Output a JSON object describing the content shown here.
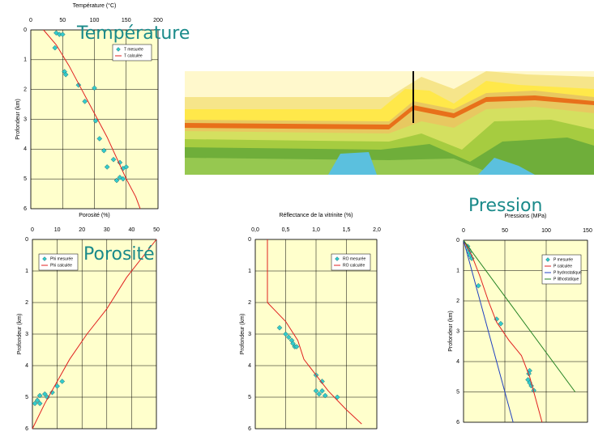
{
  "chart_data": [
    {
      "type": "line",
      "title": "Température (°C)",
      "annotation": "Température",
      "y_label": "Profondeur (km)",
      "xlim": [
        0,
        200
      ],
      "xticks": [
        0,
        50,
        100,
        150,
        200
      ],
      "ylim": [
        0,
        6
      ],
      "yticks": [
        0,
        1,
        2,
        3,
        4,
        5,
        6
      ],
      "y_inverted": true,
      "grid": true,
      "legend": "upper right",
      "series": [
        {
          "name": "T mesurée",
          "color": "#33cccc",
          "style": "markers",
          "x": [
            40,
            45,
            50,
            38,
            53,
            55,
            75,
            100,
            85,
            102,
            108,
            115,
            130,
            140,
            120,
            145,
            150,
            140,
            145,
            135
          ],
          "values": [
            0.1,
            0.15,
            0.15,
            0.6,
            1.4,
            1.5,
            1.85,
            1.95,
            2.4,
            3.05,
            3.65,
            4.05,
            4.35,
            4.45,
            4.6,
            4.65,
            4.6,
            4.95,
            5.0,
            5.05
          ]
        },
        {
          "name": "T calculée",
          "color": "#e02020",
          "style": "line",
          "x": [
            20,
            40,
            60,
            80,
            100,
            120,
            135,
            150,
            165,
            172
          ],
          "values": [
            0,
            0.5,
            1.2,
            2,
            2.8,
            3.6,
            4.3,
            5,
            5.6,
            6
          ]
        }
      ]
    },
    {
      "type": "line",
      "title": "Porosité (%)",
      "annotation": "Porosité",
      "y_label": "Profondeur (km)",
      "xlim": [
        0,
        50
      ],
      "xticks": [
        0,
        10,
        20,
        30,
        40,
        50
      ],
      "ylim": [
        0,
        6
      ],
      "yticks": [
        0,
        1,
        2,
        3,
        4,
        5,
        6
      ],
      "y_inverted": true,
      "grid": true,
      "legend": "upper left",
      "series": [
        {
          "name": "Phi mesurée",
          "color": "#33cccc",
          "style": "markers",
          "x": [
            12,
            10,
            8,
            5,
            3,
            6,
            2,
            3,
            1
          ],
          "values": [
            4.5,
            4.65,
            4.85,
            4.9,
            4.95,
            5,
            5.1,
            5.2,
            5.2
          ]
        },
        {
          "name": "Phi calculée",
          "color": "#e02020",
          "style": "line",
          "x": [
            50,
            45,
            38,
            30,
            22,
            15,
            10,
            5,
            0
          ],
          "values": [
            0,
            0.5,
            1.2,
            2.2,
            3,
            3.8,
            4.5,
            5.2,
            6
          ]
        }
      ]
    },
    {
      "type": "line",
      "title": "Réflectance de la vitrinite (%)",
      "y_label": "Profondeur (km)",
      "xlim": [
        0,
        2
      ],
      "xticks": [
        {
          "value": 0,
          "label": "0,0"
        },
        {
          "value": 0.5,
          "label": "0,5"
        },
        {
          "value": 1,
          "label": "1,0"
        },
        {
          "value": 1.5,
          "label": "1,5"
        },
        {
          "value": 2,
          "label": "2,0"
        }
      ],
      "ylim": [
        0,
        6
      ],
      "yticks": [
        0,
        1,
        2,
        3,
        4,
        5,
        6
      ],
      "y_inverted": true,
      "grid": true,
      "legend": "upper right",
      "series": [
        {
          "name": "RO mesurée",
          "color": "#33cccc",
          "style": "markers",
          "x": [
            0.4,
            0.5,
            0.55,
            0.6,
            0.62,
            0.65,
            0.68,
            1.0,
            1.1,
            1.0,
            1.05,
            1.1,
            1.15,
            1.35
          ],
          "values": [
            2.8,
            3.0,
            3.1,
            3.2,
            3.3,
            3.4,
            3.4,
            4.3,
            4.5,
            4.8,
            4.9,
            4.8,
            4.95,
            5.0
          ]
        },
        {
          "name": "RO calculée",
          "color": "#e02020",
          "style": "line",
          "x": [
            0.2,
            0.2,
            0.3,
            0.5,
            0.7,
            0.8,
            1.0,
            1.2,
            1.5,
            1.75
          ],
          "values": [
            0,
            2,
            2.2,
            2.6,
            3.2,
            3.8,
            4.3,
            4.8,
            5.4,
            5.85
          ]
        }
      ]
    },
    {
      "type": "line",
      "title": "Pressions (MPa)",
      "annotation": "Pression",
      "y_label": "Profondeur (km)",
      "xlim": [
        0,
        150
      ],
      "xticks": [
        0,
        50,
        100,
        150
      ],
      "ylim": [
        0,
        6
      ],
      "yticks": [
        0,
        1,
        2,
        3,
        4,
        5,
        6
      ],
      "y_inverted": true,
      "grid": true,
      "legend": "upper right",
      "series": [
        {
          "name": "P mesurée",
          "color": "#33cccc",
          "style": "markers",
          "x": [
            5,
            6,
            7,
            8,
            10,
            18,
            40,
            45,
            80,
            79,
            78,
            80,
            82,
            85
          ],
          "values": [
            0.2,
            0.3,
            0.4,
            0.5,
            0.6,
            1.5,
            2.6,
            2.75,
            4.3,
            4.4,
            4.6,
            4.7,
            4.8,
            4.95
          ]
        },
        {
          "name": "P calculée",
          "color": "#e02020",
          "style": "line",
          "x": [
            0,
            10,
            20,
            30,
            40,
            55,
            70,
            80,
            85,
            95
          ],
          "values": [
            0,
            0.5,
            1.2,
            2,
            2.7,
            3.3,
            3.8,
            4.5,
            5,
            6
          ]
        },
        {
          "name": "P hydrostatique",
          "color": "#2040c0",
          "style": "line",
          "x": [
            0,
            60
          ],
          "values": [
            0,
            6
          ]
        },
        {
          "name": "P lithostatique",
          "color": "#208020",
          "style": "line",
          "x": [
            0,
            135
          ],
          "values": [
            0,
            5
          ]
        }
      ]
    }
  ]
}
